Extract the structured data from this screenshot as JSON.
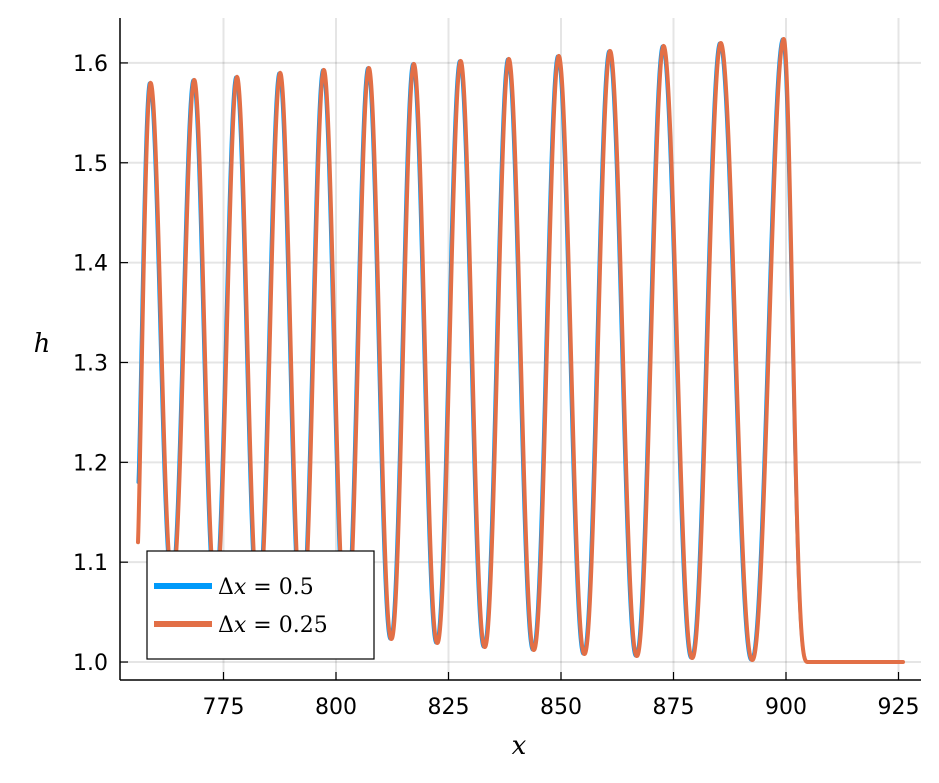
{
  "chart_data": {
    "type": "line",
    "xlabel": "x",
    "ylabel": "h",
    "xlim": [
      752,
      930
    ],
    "ylim": [
      0.982,
      1.645
    ],
    "xticks": [
      775,
      800,
      825,
      850,
      875,
      900,
      925
    ],
    "yticks": [
      1.0,
      1.1,
      1.2,
      1.3,
      1.4,
      1.5,
      1.6
    ],
    "xtick_labels": [
      "775",
      "800",
      "825",
      "850",
      "875",
      "900",
      "925"
    ],
    "ytick_labels": [
      "1.0",
      "1.1",
      "1.2",
      "1.3",
      "1.4",
      "1.5",
      "1.6"
    ],
    "grid": true,
    "legend_position": "bottom-left",
    "x_range": [
      756,
      926
    ],
    "front_end": 905,
    "peaks": [
      {
        "x": 758.8,
        "h": 1.58,
        "trough": 1.1
      },
      {
        "x": 768.5,
        "h": 1.583,
        "trough": 1.082
      },
      {
        "x": 778.0,
        "h": 1.586,
        "trough": 1.07
      },
      {
        "x": 787.6,
        "h": 1.59,
        "trough": 1.057
      },
      {
        "x": 797.3,
        "h": 1.593,
        "trough": 1.043
      },
      {
        "x": 807.3,
        "h": 1.595,
        "trough": 1.03
      },
      {
        "x": 817.3,
        "h": 1.599,
        "trough": 1.023
      },
      {
        "x": 827.7,
        "h": 1.602,
        "trough": 1.019
      },
      {
        "x": 838.4,
        "h": 1.604,
        "trough": 1.015
      },
      {
        "x": 849.5,
        "h": 1.607,
        "trough": 1.012
      },
      {
        "x": 860.9,
        "h": 1.612,
        "trough": 1.008
      },
      {
        "x": 872.8,
        "h": 1.617,
        "trough": 1.006
      },
      {
        "x": 885.5,
        "h": 1.62,
        "trough": 1.004
      },
      {
        "x": 899.5,
        "h": 1.624,
        "trough": 1.002
      }
    ],
    "series": [
      {
        "name": "Δx = 0.5",
        "label_lhs": "Δ",
        "label_var": "x",
        "label_rhs": " = 0.5",
        "color": "#009AFA",
        "width": 3,
        "start_h": 1.18,
        "shift": -0.25
      },
      {
        "name": "Δx = 0.25",
        "label_lhs": "Δ",
        "label_var": "x",
        "label_rhs": " = 0.25",
        "color": "#E26F46",
        "width": 4,
        "start_h": 1.12,
        "shift": 0
      }
    ]
  }
}
